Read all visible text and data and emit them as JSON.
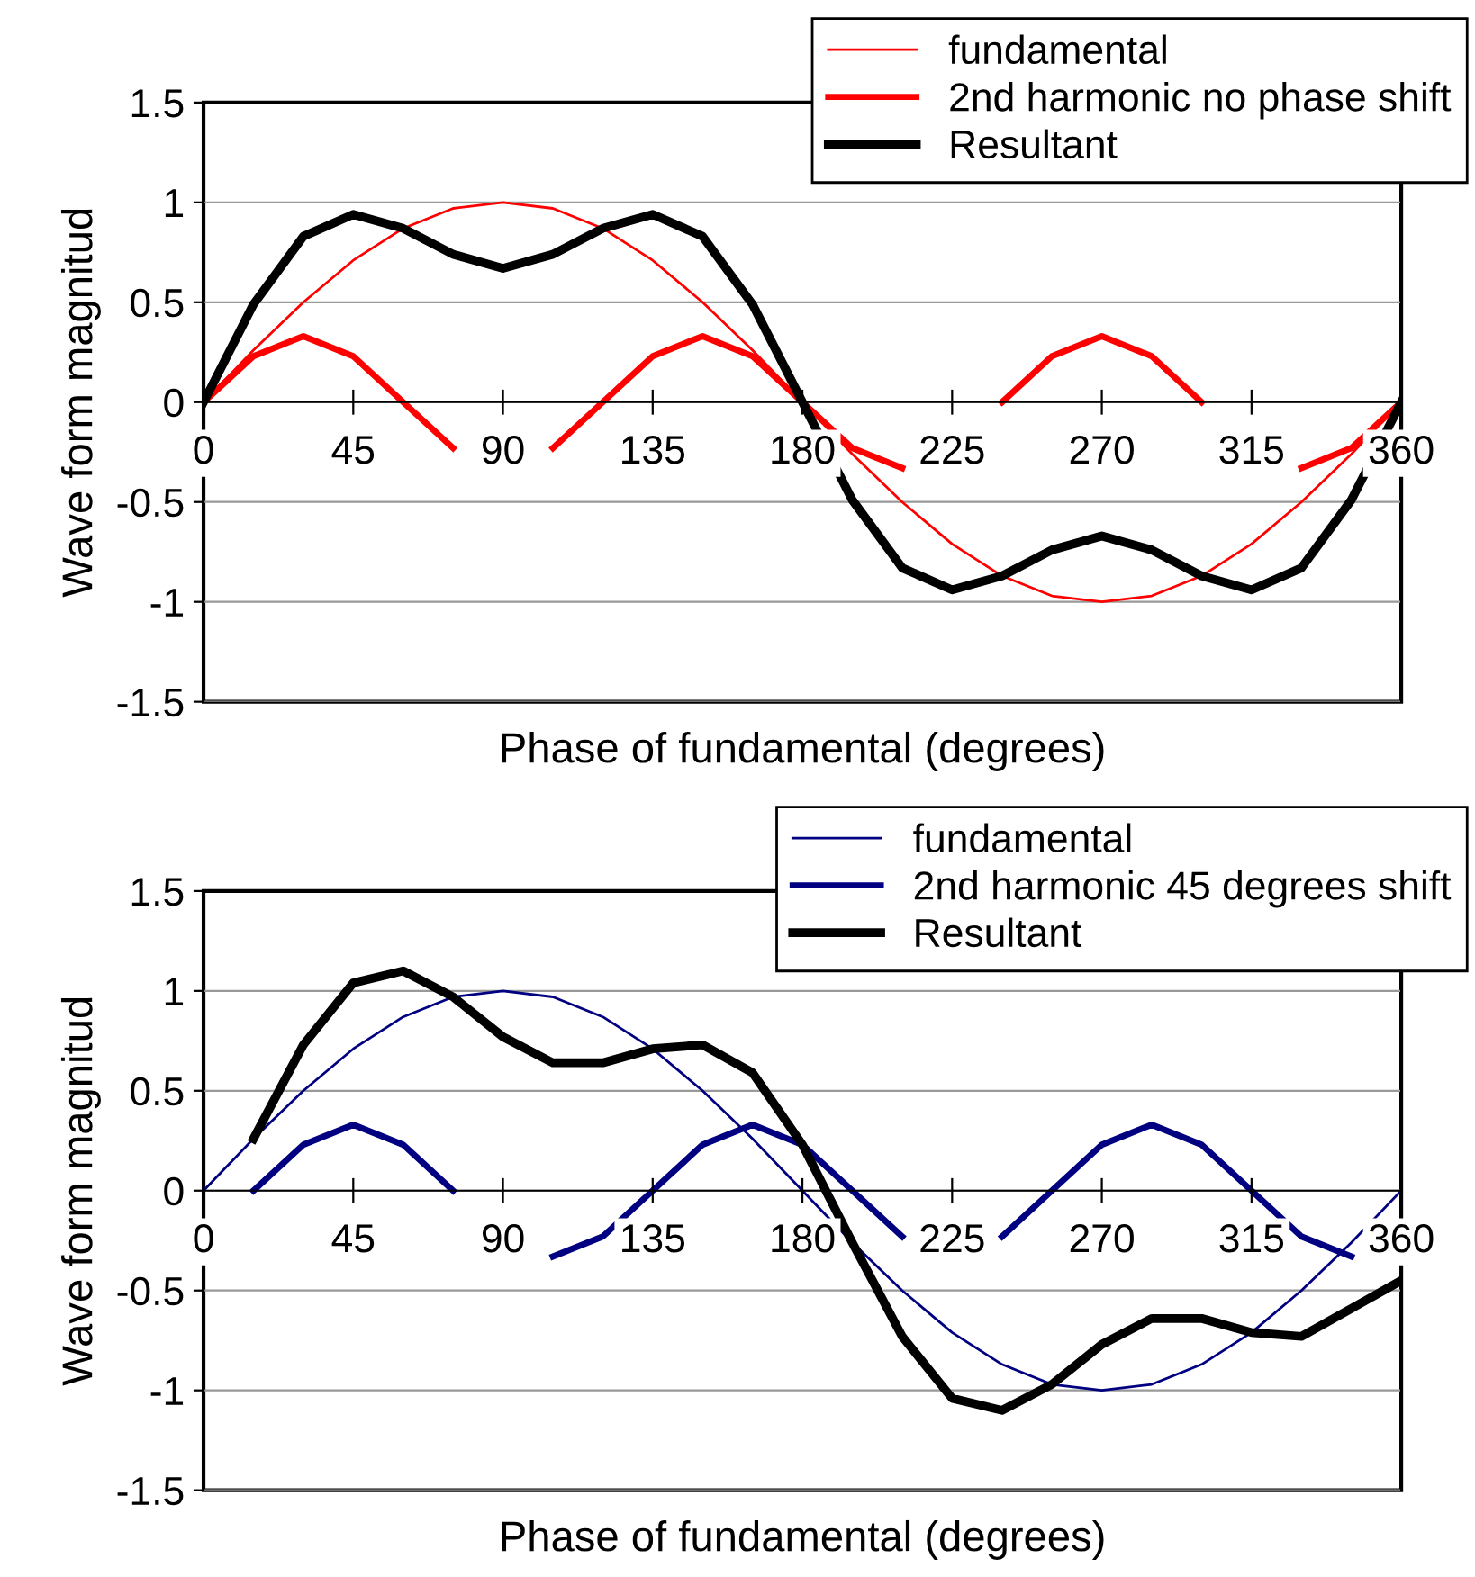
{
  "chart_data": [
    {
      "type": "line",
      "xlabel": "Phase of fundamental (degrees)",
      "ylabel": "Wave form magnitud",
      "x": [
        0,
        15,
        30,
        45,
        60,
        75,
        90,
        105,
        120,
        135,
        150,
        165,
        180,
        195,
        210,
        225,
        240,
        255,
        270,
        285,
        300,
        315,
        330,
        345,
        360
      ],
      "xlim": [
        0,
        360
      ],
      "xticks": [
        0,
        45,
        90,
        135,
        180,
        225,
        270,
        315,
        360
      ],
      "ylim": [
        -1.5,
        1.5
      ],
      "yticks": [
        -1.5,
        -1,
        -0.5,
        0,
        0.5,
        1,
        1.5
      ],
      "grid": "y",
      "legend": "top right",
      "marker": "none",
      "line_style": "solid",
      "series": [
        {
          "name": "fundamental",
          "color": "#ff0000",
          "values": [
            0,
            0.26,
            0.5,
            0.71,
            0.87,
            0.97,
            1,
            0.97,
            0.87,
            0.71,
            0.5,
            0.26,
            0,
            -0.26,
            -0.5,
            -0.71,
            -0.87,
            -0.97,
            -1,
            -0.97,
            -0.87,
            -0.71,
            -0.5,
            -0.26,
            0
          ]
        },
        {
          "name": "2nd harmonic no phase shift",
          "color": "#ff0000",
          "values": [
            0,
            0.23,
            0.33,
            0.23,
            0,
            -0.23,
            null,
            -0.23,
            0,
            0.23,
            0.33,
            0.23,
            0,
            -0.23,
            -0.33,
            null,
            0,
            0.23,
            0.33,
            0.23,
            0,
            null,
            -0.33,
            -0.23,
            0
          ]
        },
        {
          "name": "Resultant",
          "color": "#000000",
          "values": [
            0,
            0.49,
            0.83,
            0.94,
            0.87,
            0.74,
            0.67,
            0.74,
            0.87,
            0.94,
            0.83,
            0.49,
            0,
            -0.49,
            -0.83,
            -0.94,
            -0.87,
            -0.74,
            -0.67,
            -0.74,
            -0.87,
            -0.94,
            -0.83,
            -0.49,
            0
          ]
        }
      ]
    },
    {
      "type": "line",
      "xlabel": "Phase of fundamental (degrees)",
      "ylabel": "Wave form magnitud",
      "x": [
        0,
        15,
        30,
        45,
        60,
        75,
        90,
        105,
        120,
        135,
        150,
        165,
        180,
        195,
        210,
        225,
        240,
        255,
        270,
        285,
        300,
        315,
        330,
        345,
        360
      ],
      "xlim": [
        0,
        360
      ],
      "xticks": [
        0,
        45,
        90,
        135,
        180,
        225,
        270,
        315,
        360
      ],
      "ylim": [
        -1.5,
        1.5
      ],
      "yticks": [
        -1.5,
        -1,
        -0.5,
        0,
        0.5,
        1,
        1.5
      ],
      "grid": "y",
      "legend": "top right",
      "marker": "none",
      "line_style": "solid",
      "series": [
        {
          "name": "fundamental",
          "color": "#000080",
          "values": [
            0,
            0.26,
            0.5,
            0.71,
            0.87,
            0.97,
            1,
            0.97,
            0.87,
            0.71,
            0.5,
            0.26,
            0,
            -0.26,
            -0.5,
            -0.71,
            -0.87,
            -0.97,
            -1,
            -0.97,
            -0.87,
            -0.71,
            -0.5,
            -0.26,
            0
          ]
        },
        {
          "name": "2nd harmonic 45 degrees shift",
          "color": "#000080",
          "values": [
            null,
            0,
            0.23,
            0.33,
            0.23,
            0,
            null,
            -0.33,
            -0.23,
            0,
            0.23,
            0.33,
            0.23,
            0,
            -0.23,
            null,
            -0.23,
            0,
            0.23,
            0.33,
            0.23,
            0,
            -0.23,
            -0.33,
            null
          ]
        },
        {
          "name": "Resultant",
          "color": "#000000",
          "values": [
            null,
            0.26,
            0.73,
            1.04,
            1.1,
            0.97,
            0.77,
            0.64,
            0.64,
            0.71,
            0.73,
            0.59,
            0.23,
            -0.26,
            -0.73,
            -1.04,
            -1.1,
            -0.97,
            -0.77,
            -0.64,
            -0.64,
            -0.71,
            -0.73,
            -0.59,
            -0.45
          ]
        }
      ]
    }
  ]
}
